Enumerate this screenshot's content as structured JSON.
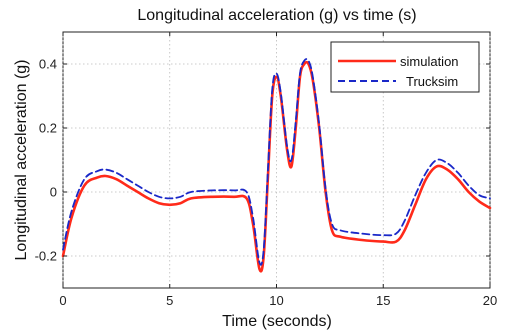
{
  "chart_data": {
    "type": "line",
    "title": "Longitudinal acceleration (g) vs time (s)",
    "xlabel": "Time (seconds)",
    "ylabel": "Longitudinal acceleration (g)",
    "xlim": [
      0,
      20
    ],
    "ylim": [
      -0.3,
      0.5
    ],
    "xticks": [
      0,
      5,
      10,
      15,
      20
    ],
    "xtick_labels": [
      "0",
      "5",
      "10",
      "15",
      "20"
    ],
    "yticks": [
      -0.2,
      0,
      0.2,
      0.4
    ],
    "ytick_labels": [
      "-0.2",
      "0",
      "0.2",
      "0.4"
    ],
    "grid": true,
    "legend_position": "top-right",
    "series": [
      {
        "name": "simulation",
        "color": "#ff2a1a",
        "style": "solid",
        "x": [
          0,
          0.4,
          1.0,
          1.6,
          2.0,
          2.5,
          3.0,
          3.5,
          4.0,
          4.5,
          5.0,
          5.5,
          6.0,
          7.0,
          8.0,
          8.6,
          8.9,
          9.2,
          9.4,
          9.6,
          9.8,
          10.0,
          10.2,
          10.5,
          10.7,
          10.9,
          11.1,
          11.3,
          11.5,
          11.7,
          12.0,
          12.3,
          12.6,
          13.0,
          14.0,
          15.0,
          15.6,
          16.0,
          16.5,
          17.0,
          17.5,
          18.0,
          18.5,
          19.0,
          19.5,
          20.0
        ],
        "values": [
          -0.2,
          -0.08,
          0.02,
          0.045,
          0.05,
          0.04,
          0.02,
          0.0,
          -0.02,
          -0.035,
          -0.04,
          -0.035,
          -0.02,
          -0.015,
          -0.015,
          -0.02,
          -0.1,
          -0.24,
          -0.2,
          0.05,
          0.3,
          0.36,
          0.3,
          0.13,
          0.08,
          0.2,
          0.36,
          0.4,
          0.4,
          0.35,
          0.2,
          0.0,
          -0.12,
          -0.14,
          -0.15,
          -0.155,
          -0.155,
          -0.12,
          -0.04,
          0.04,
          0.08,
          0.07,
          0.04,
          0.0,
          -0.03,
          -0.05
        ]
      },
      {
        "name": "Trucksim",
        "color": "#1a28c8",
        "style": "dashed",
        "x": [
          0,
          0.4,
          1.0,
          1.6,
          2.0,
          2.5,
          3.0,
          3.5,
          4.0,
          4.5,
          5.0,
          5.5,
          6.0,
          7.0,
          8.0,
          8.6,
          8.9,
          9.2,
          9.4,
          9.6,
          9.8,
          10.0,
          10.2,
          10.5,
          10.7,
          10.9,
          11.1,
          11.3,
          11.5,
          11.7,
          12.0,
          12.3,
          12.6,
          13.0,
          14.0,
          15.0,
          15.6,
          16.0,
          16.5,
          17.0,
          17.5,
          18.0,
          18.5,
          19.0,
          19.5,
          20.0
        ],
        "values": [
          -0.18,
          -0.06,
          0.04,
          0.065,
          0.07,
          0.06,
          0.04,
          0.02,
          0.0,
          -0.015,
          -0.02,
          -0.015,
          0.0,
          0.005,
          0.005,
          0.0,
          -0.08,
          -0.22,
          -0.18,
          0.07,
          0.32,
          0.37,
          0.31,
          0.14,
          0.1,
          0.22,
          0.37,
          0.41,
          0.41,
          0.36,
          0.21,
          0.01,
          -0.1,
          -0.12,
          -0.13,
          -0.135,
          -0.13,
          -0.09,
          -0.01,
          0.06,
          0.1,
          0.09,
          0.06,
          0.02,
          -0.01,
          -0.02
        ]
      }
    ]
  }
}
